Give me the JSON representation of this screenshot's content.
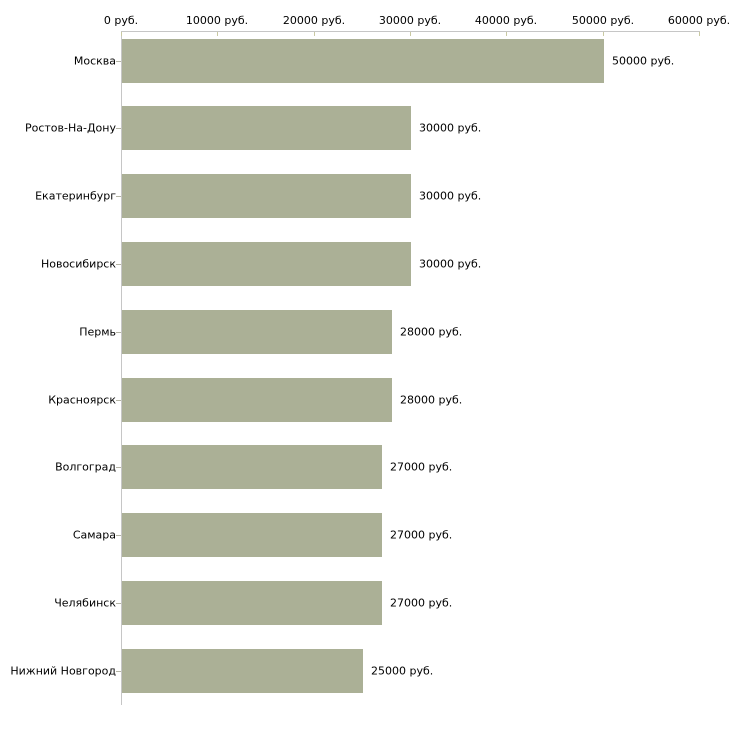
{
  "chart_data": {
    "type": "bar",
    "orientation": "horizontal",
    "title": "",
    "xlabel": "",
    "ylabel": "",
    "unit": "руб.",
    "categories": [
      "Москва",
      "Ростов-На-Дону",
      "Екатеринбург",
      "Новосибирск",
      "Пермь",
      "Красноярск",
      "Волгоград",
      "Самара",
      "Челябинск",
      "Нижний Новгород"
    ],
    "values": [
      50000,
      30000,
      30000,
      30000,
      28000,
      28000,
      27000,
      27000,
      27000,
      25000
    ],
    "value_labels": [
      "50000 руб.",
      "30000 руб.",
      "30000 руб.",
      "30000 руб.",
      "28000 руб.",
      "28000 руб.",
      "27000 руб.",
      "27000 руб.",
      "27000 руб.",
      "25000 руб."
    ],
    "xlim": [
      0,
      60000
    ],
    "x_ticks": [
      0,
      10000,
      20000,
      30000,
      40000,
      50000,
      60000
    ],
    "x_tick_labels": [
      "0 руб.",
      "10000 руб.",
      "20000 руб.",
      "30000 руб.",
      "40000 руб.",
      "50000 руб.",
      "60000 руб."
    ],
    "x_axis_position": "top",
    "grid": false,
    "legend": false,
    "bar_color": "#abb096",
    "axis_color": "#c6c6c6",
    "x_tick_color": "#c9c9a2",
    "category_tick_color": "#b4b4a6",
    "text_color": "#000000",
    "background_color": "#ffffff"
  }
}
